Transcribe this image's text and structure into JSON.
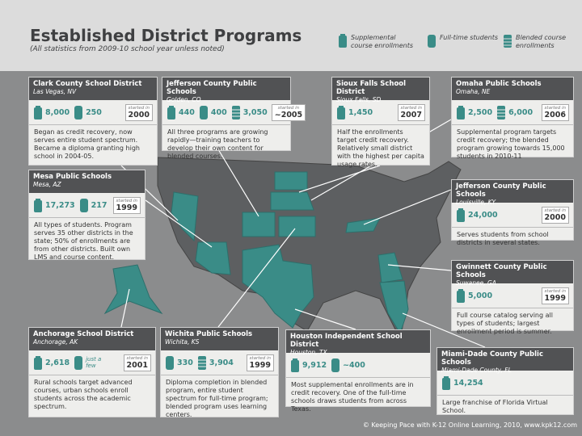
{
  "header": {
    "title": "Established District Programs",
    "subtitle": "(All statistics from 2009-10 school year unless noted)"
  },
  "legend": {
    "supplemental": "Supplemental course enrollments",
    "full_time": "Full-time students",
    "blended": "Blended course enrollments"
  },
  "districts": [
    {
      "name": "Clark County School District",
      "location": "Las Vegas, NV",
      "supplemental": "8,000",
      "full_time": "250",
      "started_label": "started in",
      "started": "2000",
      "description": "Began as credit recovery, now serves entire student spectrum. Became a diploma granting high school in 2004-05."
    },
    {
      "name": "Jefferson County Public Schools",
      "location": "Golden, CO",
      "supplemental": "440",
      "full_time": "400",
      "blended": "3,050",
      "started_label": "started in",
      "started": "~2005",
      "description": "All three programs are growing rapidly—training teachers to develop their own content for blended courses."
    },
    {
      "name": "Sioux Falls School District",
      "location": "Sioux Falls, SD",
      "supplemental": "1,450",
      "started_label": "started in",
      "started": "2007",
      "description": "Half the enrollments target credit recovery. Relatively small district with the highest per capita usage rates."
    },
    {
      "name": "Omaha Public Schools",
      "location": "Omaha, NE",
      "supplemental": "2,500",
      "blended": "6,000",
      "started_label": "started in",
      "started": "2006",
      "description": "Supplemental program targets credit recovery; the blended program growing towards 15,000 students in 2010-11"
    },
    {
      "name": "Mesa Public Schools",
      "location": "Mesa, AZ",
      "supplemental": "17,273",
      "full_time": "217",
      "started_label": "started in",
      "started": "1999",
      "description": "All types of students. Program serves 35 other districts in the state; 50% of enrollments are from other districts. Built own LMS and course content."
    },
    {
      "name": "Jefferson County Public Schools",
      "location": "Louisville, KY",
      "supplemental": "24,000",
      "started_label": "started in",
      "started": "2000",
      "description": "Serves students from school districts in several states."
    },
    {
      "name": "Gwinnett County Public Schools",
      "location": "Suwanee, GA",
      "supplemental": "5,000",
      "started_label": "started in",
      "started": "1999",
      "description": "Full course catalog serving all types of students; largest enrollment period is summer."
    },
    {
      "name": "Anchorage School District",
      "location": "Anchorage, AK",
      "supplemental": "2,618",
      "full_time": "just a few",
      "started_label": "started in",
      "started": "2001",
      "description": "Rural schools target advanced courses, urban schools enroll students across the academic spectrum."
    },
    {
      "name": "Wichita Public Schools",
      "location": "Wichita, KS",
      "full_time": "330",
      "blended": "3,904",
      "started_label": "started in",
      "started": "1999",
      "description": "Diploma completion in blended program, entire student spectrum for full-time program; blended program uses learning centers."
    },
    {
      "name": "Houston Independent School District",
      "location": "Houston, TX",
      "supplemental": "9,912",
      "full_time": "~400",
      "description": "Most supplemental enrollments are in credit recovery. One of the full-time schools draws students from across Texas."
    },
    {
      "name": "Miami-Dade County Public Schools",
      "location": "Miami-Dade County, FL",
      "supplemental": "14,254",
      "description": "Large franchise of Florida Virtual School."
    }
  ],
  "footer": "© Keeping Pace with K-12 Online Learning, 2010, www.kpk12.com"
}
